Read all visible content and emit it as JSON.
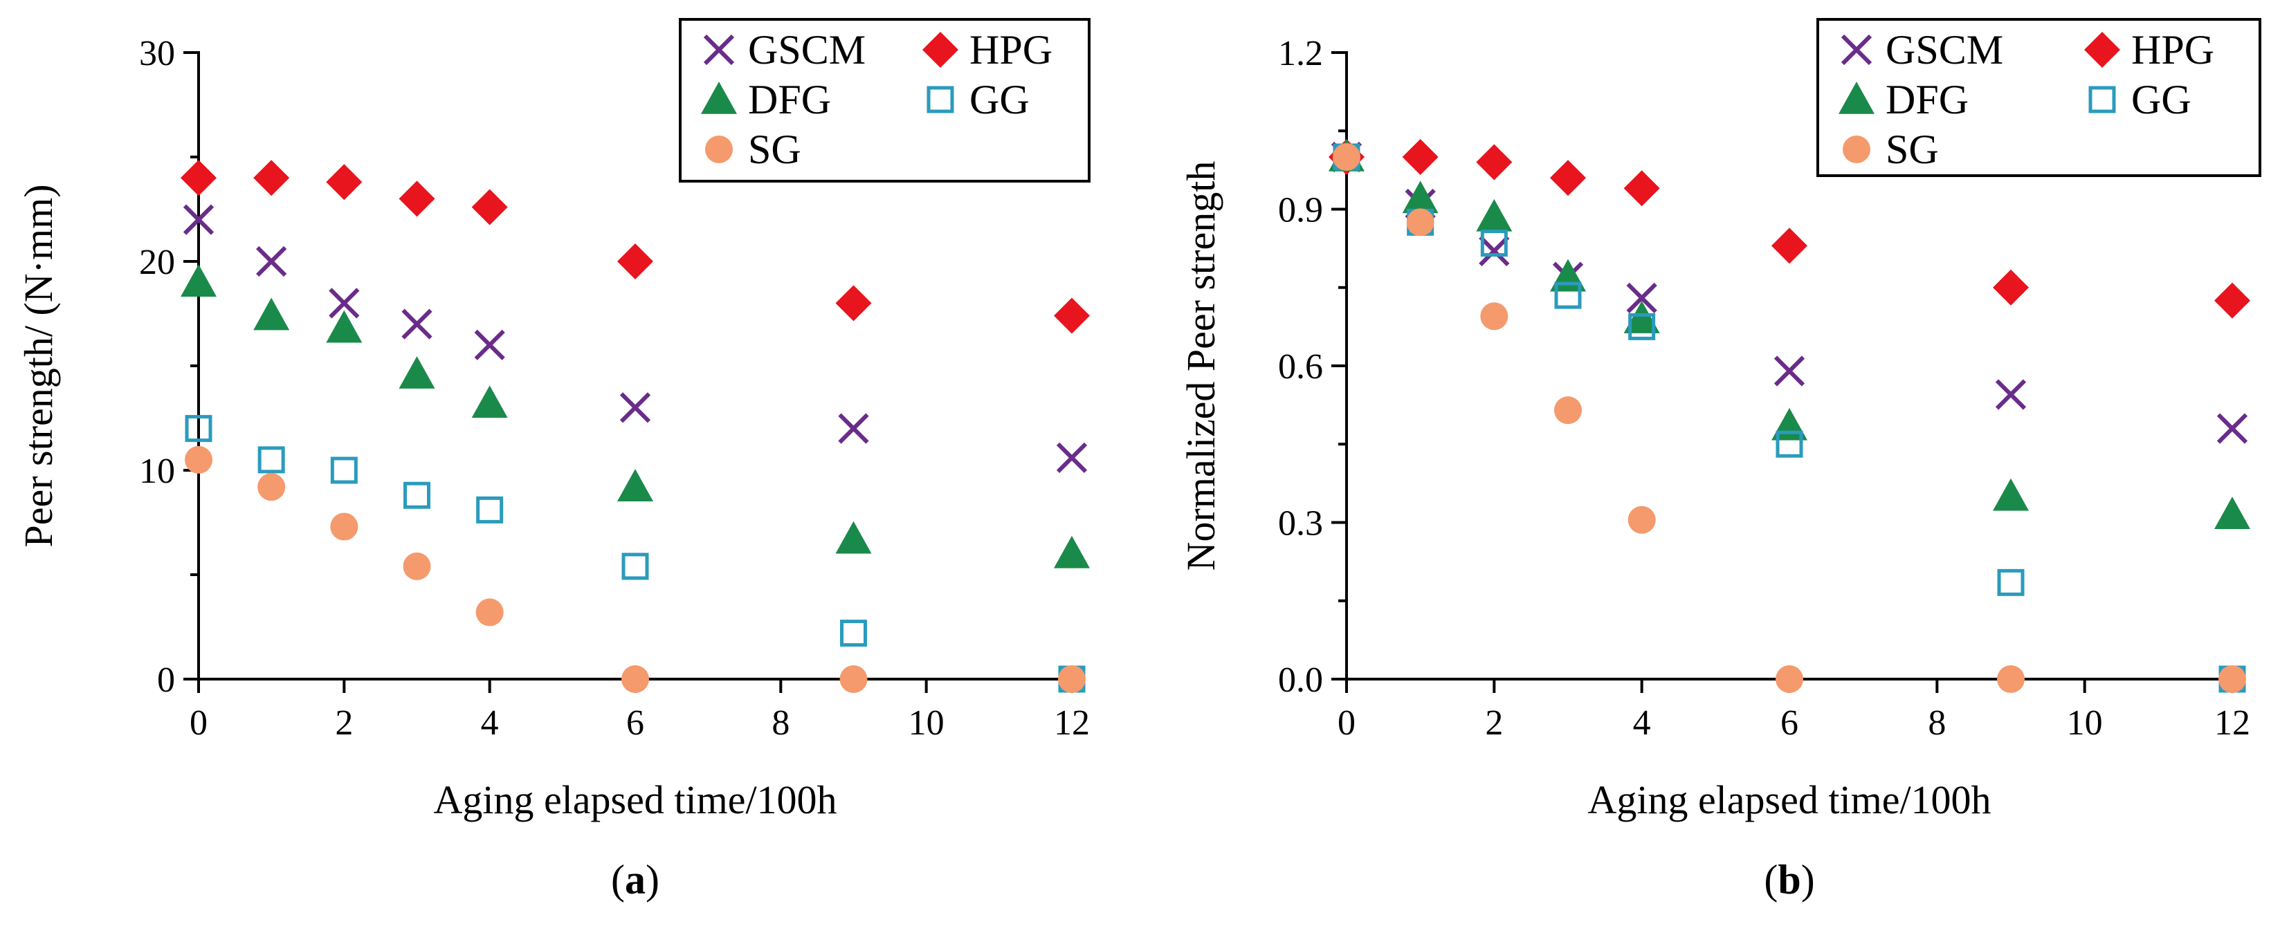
{
  "chart_data": [
    {
      "type": "scatter",
      "panel_label_prefix": "(",
      "panel_label_letter": "a",
      "panel_label_suffix": ")",
      "xlabel": "Aging elapsed time/100h",
      "ylabel": "Peer strength/ (N·mm)",
      "xlim": [
        0,
        12
      ],
      "ylim": [
        0,
        30
      ],
      "xticks": [
        "0",
        "2",
        "4",
        "6",
        "8",
        "10",
        "12"
      ],
      "yticks": [
        "0",
        "10",
        "20",
        "30"
      ],
      "legend_position": "top-right",
      "series": [
        {
          "name": "GSCM",
          "marker": "x",
          "color": "#6a2c8a",
          "x": [
            0,
            1,
            2,
            3,
            4,
            6,
            9,
            12
          ],
          "y": [
            22,
            20,
            18,
            17,
            16,
            13,
            12,
            10.6
          ]
        },
        {
          "name": "HPG",
          "marker": "diamond",
          "color": "#e8141e",
          "x": [
            0,
            1,
            2,
            3,
            4,
            6,
            9,
            12
          ],
          "y": [
            24,
            24,
            23.8,
            23,
            22.6,
            20,
            18,
            17.4
          ]
        },
        {
          "name": "DFG",
          "marker": "triangle",
          "color": "#1a8a4a",
          "x": [
            0,
            1,
            2,
            3,
            4,
            6,
            9,
            12
          ],
          "y": [
            19,
            17.4,
            16.8,
            14.6,
            13.2,
            9.2,
            6.7,
            6
          ]
        },
        {
          "name": "GG",
          "marker": "square-open",
          "color": "#2a9bbd",
          "x": [
            0,
            1,
            2,
            3,
            4,
            6,
            9,
            12
          ],
          "y": [
            12,
            10.5,
            10,
            8.8,
            8.1,
            5.4,
            2.2,
            0
          ]
        },
        {
          "name": "SG",
          "marker": "circle",
          "color": "#f59a6c",
          "x": [
            0,
            1,
            2,
            3,
            4,
            6,
            9,
            12
          ],
          "y": [
            10.5,
            9.2,
            7.3,
            5.4,
            3.2,
            0,
            0,
            0
          ]
        }
      ]
    },
    {
      "type": "scatter",
      "panel_label_prefix": "(",
      "panel_label_letter": "b",
      "panel_label_suffix": ")",
      "xlabel": "Aging elapsed time/100h",
      "ylabel": "Normalized Peer strength",
      "xlim": [
        0,
        12
      ],
      "ylim": [
        0,
        1.2
      ],
      "xticks": [
        "0",
        "2",
        "4",
        "6",
        "8",
        "10",
        "12"
      ],
      "yticks": [
        "0.0",
        "0.3",
        "0.6",
        "0.9",
        "1.2"
      ],
      "legend_position": "top-right",
      "series": [
        {
          "name": "GSCM",
          "marker": "x",
          "color": "#6a2c8a",
          "x": [
            0,
            1,
            2,
            3,
            4,
            6,
            9,
            12
          ],
          "y": [
            1.0,
            0.91,
            0.82,
            0.77,
            0.73,
            0.59,
            0.545,
            0.48
          ]
        },
        {
          "name": "HPG",
          "marker": "diamond",
          "color": "#e8141e",
          "x": [
            0,
            1,
            2,
            3,
            4,
            6,
            9,
            12
          ],
          "y": [
            1.0,
            1.0,
            0.99,
            0.96,
            0.94,
            0.83,
            0.75,
            0.725
          ]
        },
        {
          "name": "DFG",
          "marker": "triangle",
          "color": "#1a8a4a",
          "x": [
            0,
            1,
            2,
            3,
            4,
            6,
            9,
            12
          ],
          "y": [
            1.0,
            0.92,
            0.885,
            0.77,
            0.69,
            0.485,
            0.35,
            0.315
          ]
        },
        {
          "name": "GG",
          "marker": "square-open",
          "color": "#2a9bbd",
          "x": [
            0,
            1,
            2,
            3,
            4,
            6,
            9,
            12
          ],
          "y": [
            1.0,
            0.875,
            0.835,
            0.735,
            0.675,
            0.45,
            0.185,
            0
          ]
        },
        {
          "name": "SG",
          "marker": "circle",
          "color": "#f59a6c",
          "x": [
            0,
            1,
            2,
            3,
            4,
            6,
            9,
            12
          ],
          "y": [
            1.0,
            0.875,
            0.695,
            0.515,
            0.305,
            0,
            0,
            0
          ]
        }
      ]
    }
  ]
}
